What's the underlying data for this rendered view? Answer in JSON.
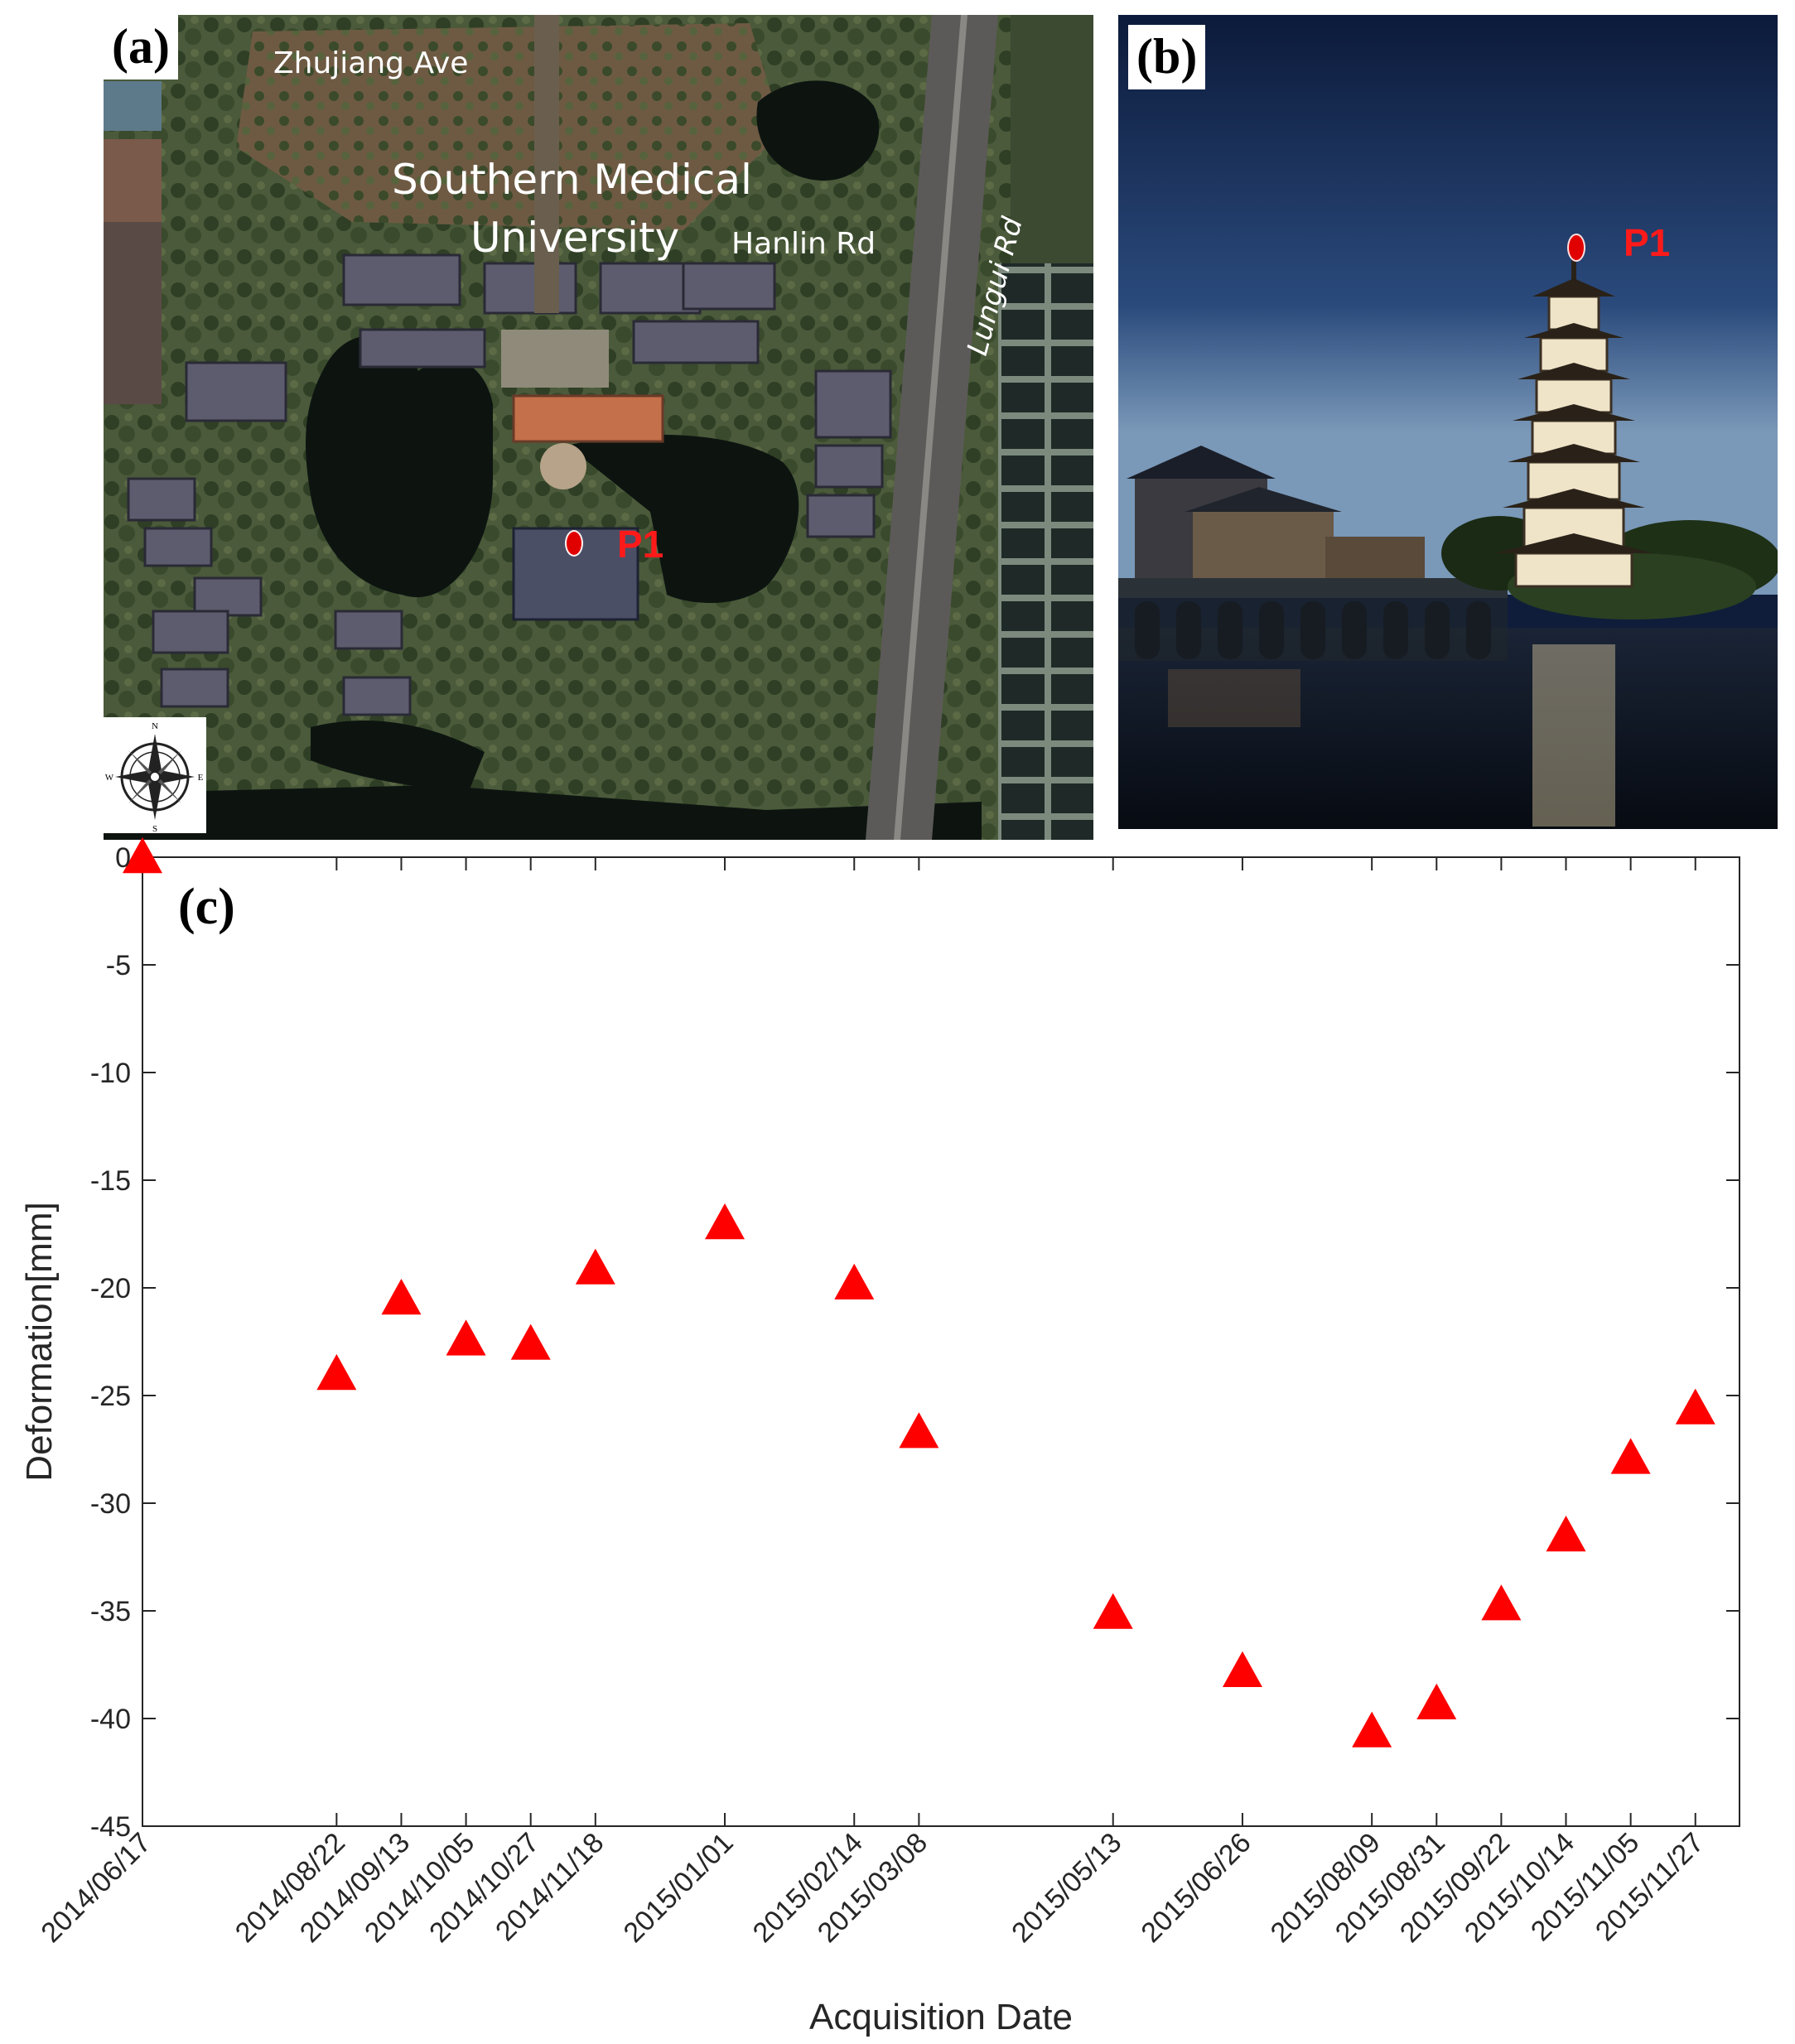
{
  "panels": {
    "a": {
      "tag": "(a)",
      "labels": {
        "road_north": "Zhujiang Ave",
        "campus_line1": "Southern Medical",
        "campus_line2": "University",
        "road_east": "Hanlin Rd",
        "road_vertical": "Lungui Rd"
      },
      "point_label": "P1",
      "compass": {
        "n": "N",
        "s": "S",
        "e": "E",
        "w": "W"
      }
    },
    "b": {
      "tag": "(b)",
      "point_label": "P1"
    },
    "c": {
      "tag": "(c)"
    }
  },
  "chart_data": {
    "type": "scatter",
    "marker": "triangle",
    "marker_color": "#ff0000",
    "xlabel": "Acquisition Date",
    "ylabel": "Deformation[mm]",
    "ylim": [
      -45,
      0
    ],
    "yticks": [
      0,
      -5,
      -10,
      -15,
      -20,
      -25,
      -30,
      -35,
      -40,
      -45
    ],
    "xlim": [
      "2014/06/17",
      "2015/12/12"
    ],
    "grid": false,
    "x": [
      "2014/06/17",
      "2014/08/22",
      "2014/09/13",
      "2014/10/05",
      "2014/10/27",
      "2014/11/18",
      "2015/01/01",
      "2015/02/14",
      "2015/03/08",
      "2015/05/13",
      "2015/06/26",
      "2015/08/09",
      "2015/08/31",
      "2015/09/22",
      "2015/10/14",
      "2015/11/05",
      "2015/11/27"
    ],
    "y": [
      0,
      -24.0,
      -20.5,
      -22.4,
      -22.6,
      -19.1,
      -17.0,
      -19.8,
      -26.7,
      -35.1,
      -37.8,
      -40.6,
      -39.3,
      -34.7,
      -31.5,
      -27.9,
      -25.6
    ]
  }
}
